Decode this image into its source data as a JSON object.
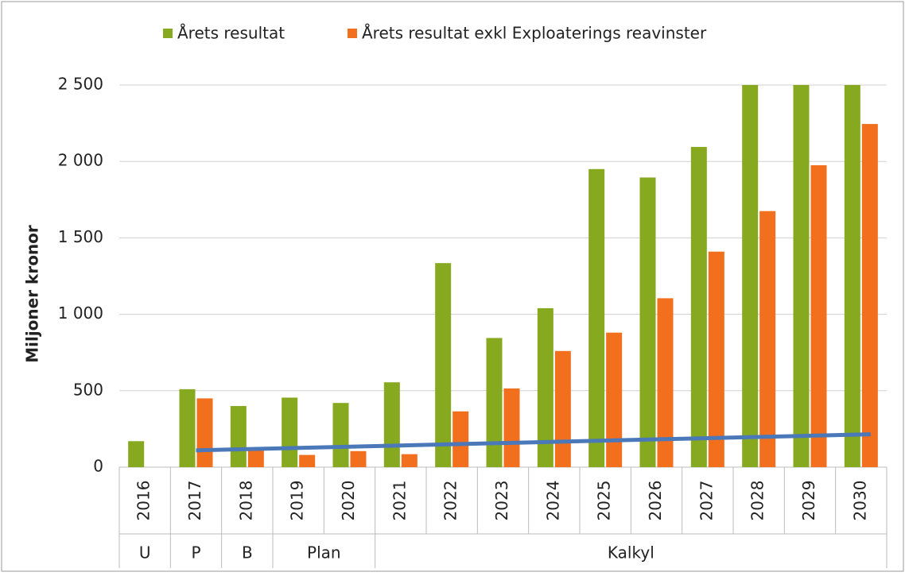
{
  "chart_data": {
    "type": "bar",
    "y_label": "Miljoner kronor",
    "categories": [
      "2016",
      "2017",
      "2018",
      "2019",
      "2020",
      "2021",
      "2022",
      "2023",
      "2024",
      "2025",
      "2026",
      "2027",
      "2028",
      "2029",
      "2030"
    ],
    "groups": [
      {
        "label": "U",
        "span": 1
      },
      {
        "label": "P",
        "span": 1
      },
      {
        "label": "B",
        "span": 1
      },
      {
        "label": "Plan",
        "span": 2
      },
      {
        "label": "Kalkyl",
        "span": 10
      }
    ],
    "series": [
      {
        "name": "Årets resultat",
        "color": "#86a91f",
        "values": [
          170,
          510,
          400,
          455,
          420,
          555,
          1335,
          845,
          1040,
          1950,
          1895,
          2095,
          2500,
          2500,
          2500
        ]
      },
      {
        "name": "Årets resultat exkl Exploaterings reavinster",
        "color": "#f26f1e",
        "values": [
          null,
          450,
          110,
          80,
          105,
          85,
          365,
          515,
          760,
          880,
          1105,
          1410,
          1675,
          1975,
          2245
        ]
      }
    ],
    "trend": {
      "color": "#4a78b8",
      "categories": [
        "2017",
        "2030"
      ],
      "values": [
        110,
        215
      ]
    },
    "ylim": [
      0,
      2500
    ],
    "yticks": [
      0,
      500,
      {
        "value": 1000,
        "label": "1 000"
      },
      {
        "value": 1500,
        "label": "1 500"
      },
      {
        "value": 2000,
        "label": "2 000"
      },
      {
        "value": 2500,
        "label": "2 500"
      }
    ],
    "grid": true
  }
}
